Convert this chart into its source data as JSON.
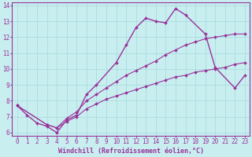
{
  "background_color": "#c8eef0",
  "grid_color": "#aadddd",
  "line_color": "#993399",
  "marker_color": "#993399",
  "xlabel": "Windchill (Refroidissement éolien,°C)",
  "xlabel_fontsize": 6,
  "tick_fontsize": 5.5,
  "xlim": [
    -0.5,
    23.5
  ],
  "ylim": [
    5.8,
    14.2
  ],
  "yticks": [
    6,
    7,
    8,
    9,
    10,
    11,
    12,
    13,
    14
  ],
  "xticks": [
    0,
    1,
    2,
    3,
    4,
    5,
    6,
    7,
    8,
    9,
    10,
    11,
    12,
    13,
    14,
    15,
    16,
    17,
    18,
    19,
    20,
    21,
    22,
    23
  ],
  "series": [
    {
      "x": [
        0,
        1,
        2,
        3,
        4,
        5,
        6,
        7,
        8,
        10,
        11,
        12,
        13,
        14,
        15,
        16,
        17,
        19,
        20,
        22,
        23
      ],
      "y": [
        7.7,
        7.1,
        6.6,
        6.4,
        6.0,
        6.8,
        7.1,
        8.4,
        9.0,
        10.4,
        11.5,
        12.6,
        13.2,
        13.0,
        12.9,
        13.8,
        13.4,
        12.2,
        10.1,
        8.8,
        9.6
      ],
      "has_markers": true,
      "linewidth": 1.0
    },
    {
      "x": [
        0,
        3,
        4,
        5,
        6,
        7,
        8,
        9,
        10,
        11,
        12,
        13,
        14,
        15,
        16,
        17,
        18,
        19,
        20,
        21,
        22,
        23
      ],
      "y": [
        7.7,
        6.5,
        6.3,
        6.7,
        7.0,
        7.5,
        7.8,
        8.1,
        8.3,
        8.5,
        8.7,
        8.9,
        9.1,
        9.3,
        9.5,
        9.6,
        9.8,
        9.9,
        10.0,
        10.1,
        10.3,
        10.4
      ],
      "has_markers": true,
      "linewidth": 0.8
    },
    {
      "x": [
        0,
        3,
        4,
        5,
        6,
        7,
        8,
        9,
        10,
        11,
        12,
        13,
        14,
        15,
        16,
        17,
        18,
        19,
        20,
        21,
        22,
        23
      ],
      "y": [
        7.7,
        6.5,
        6.3,
        6.9,
        7.3,
        8.0,
        8.4,
        8.8,
        9.2,
        9.6,
        9.9,
        10.2,
        10.5,
        10.9,
        11.2,
        11.5,
        11.7,
        11.9,
        12.0,
        12.1,
        12.2,
        12.2
      ],
      "has_markers": true,
      "linewidth": 0.8
    }
  ]
}
